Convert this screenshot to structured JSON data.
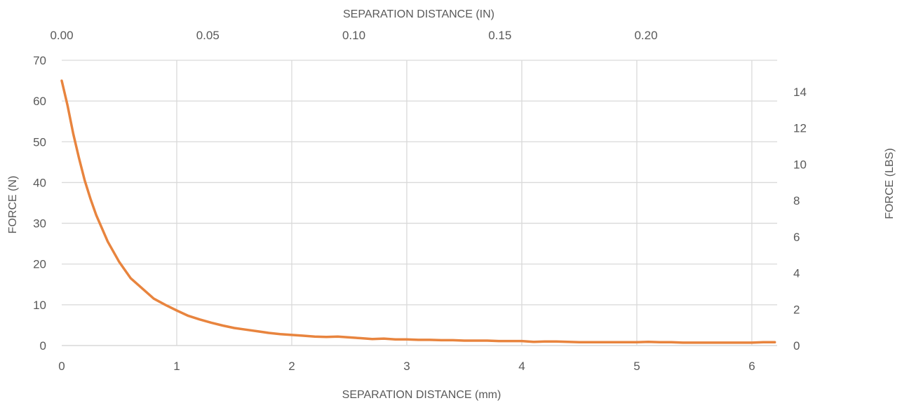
{
  "chart_data": {
    "type": "line",
    "title": "",
    "xlabel": "SEPARATION DISTANCE (mm)",
    "x2label": "SEPARATION DISTANCE (IN)",
    "ylabel": "FORCE (N)",
    "y2label": "FORCE (LBS)",
    "xlim": [
      0,
      6.22
    ],
    "ylim": [
      0,
      70
    ],
    "x2lim": [
      0,
      0.2449
    ],
    "y2lim": [
      0,
      15.74
    ],
    "grid": true,
    "legend": "none",
    "x_ticks": [
      0,
      1,
      2,
      3,
      4,
      5,
      6
    ],
    "y_ticks": [
      0,
      10,
      20,
      30,
      40,
      50,
      60,
      70
    ],
    "x2_ticks": [
      "0.00",
      "0.05",
      "0.10",
      "0.15",
      "0.20"
    ],
    "y2_ticks": [
      0,
      2,
      4,
      6,
      8,
      10,
      12,
      14
    ],
    "line_color": "#E8843E",
    "series": [
      {
        "x": [
          0.0,
          0.05,
          0.1,
          0.15,
          0.2,
          0.25,
          0.3,
          0.4,
          0.5,
          0.6,
          0.7,
          0.8,
          0.9,
          1.0,
          1.1,
          1.2,
          1.3,
          1.4,
          1.5,
          1.6,
          1.7,
          1.8,
          1.9,
          2.0,
          2.1,
          2.2,
          2.3,
          2.4,
          2.5,
          2.6,
          2.7,
          2.8,
          2.9,
          3.0,
          3.1,
          3.2,
          3.3,
          3.4,
          3.5,
          3.6,
          3.7,
          3.8,
          3.9,
          4.0,
          4.1,
          4.2,
          4.3,
          4.4,
          4.5,
          4.6,
          4.7,
          4.8,
          4.9,
          5.0,
          5.1,
          5.2,
          5.3,
          5.4,
          5.5,
          5.6,
          5.7,
          5.8,
          5.9,
          6.0,
          6.1,
          6.2
        ],
        "y": [
          65.0,
          59.0,
          52.0,
          46.0,
          40.5,
          36.0,
          32.0,
          25.5,
          20.5,
          16.5,
          14.0,
          11.5,
          10.0,
          8.6,
          7.3,
          6.4,
          5.6,
          4.9,
          4.3,
          3.9,
          3.5,
          3.1,
          2.8,
          2.6,
          2.4,
          2.2,
          2.1,
          2.2,
          2.0,
          1.8,
          1.6,
          1.7,
          1.5,
          1.5,
          1.4,
          1.4,
          1.3,
          1.3,
          1.2,
          1.2,
          1.2,
          1.1,
          1.1,
          1.1,
          0.9,
          1.0,
          1.0,
          0.9,
          0.8,
          0.8,
          0.8,
          0.8,
          0.8,
          0.8,
          0.9,
          0.8,
          0.8,
          0.7,
          0.7,
          0.7,
          0.7,
          0.7,
          0.7,
          0.7,
          0.8,
          0.8
        ]
      }
    ]
  }
}
